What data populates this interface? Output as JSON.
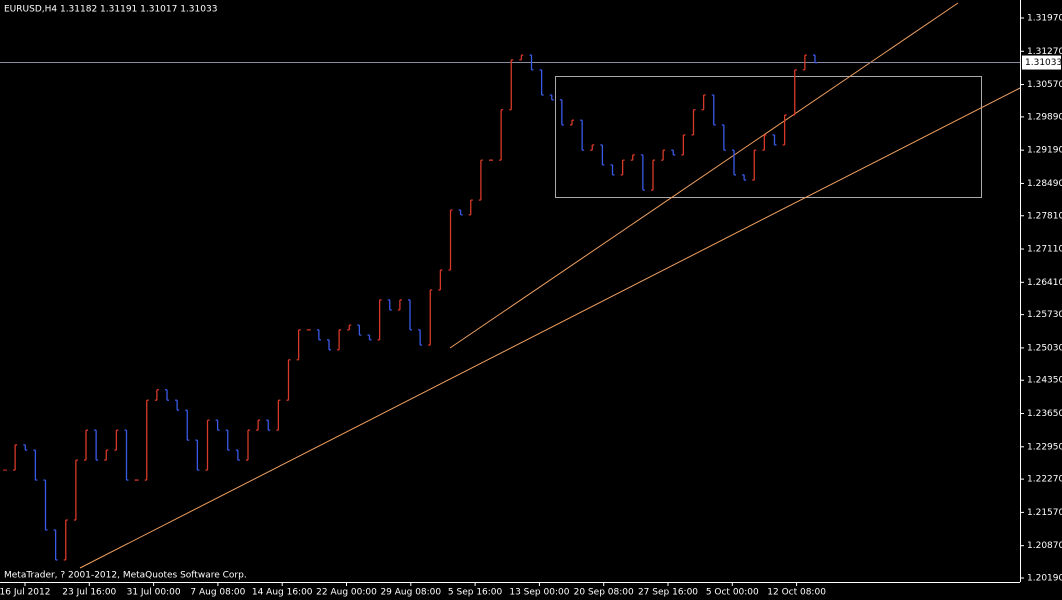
{
  "chart_data": {
    "type": "bars",
    "title": "EURUSD,H4  1.31182 1.31191 1.31017 1.31033",
    "footer": "MetaTrader, ? 2001-2012, MetaQuotes Software Corp.",
    "current_price": {
      "value": 1.31033,
      "label": "1.31033"
    },
    "up_color": "#d83a2a",
    "down_color": "#3a5ae8",
    "x_labels": [
      "16 Jul 2012",
      "23 Jul 16:00",
      "31 Jul 00:00",
      "7 Aug 08:00",
      "14 Aug 16:00",
      "22 Aug 00:00",
      "29 Aug 08:00",
      "5 Sep 16:00",
      "13 Sep 00:00",
      "20 Sep 08:00",
      "27 Sep 16:00",
      "5 Oct 00:00",
      "12 Oct 08:00"
    ],
    "values": [
      1.2246,
      1.2299,
      1.2288,
      1.2225,
      1.212,
      1.2057,
      1.2141,
      1.2267,
      1.233,
      1.2267,
      1.2288,
      1.233,
      1.2225,
      1.2225,
      1.2393,
      1.2415,
      1.2393,
      1.2372,
      1.2309,
      1.2246,
      1.2351,
      1.233,
      1.2288,
      1.2267,
      1.233,
      1.2351,
      1.233,
      1.2393,
      1.2478,
      1.2541,
      1.2541,
      1.252,
      1.2499,
      1.2541,
      1.2551,
      1.253,
      1.252,
      1.2604,
      1.2583,
      1.2604,
      1.2541,
      1.2509,
      1.2625,
      1.2667,
      1.2793,
      1.2783,
      1.2814,
      1.2898,
      1.2898,
      1.3004,
      1.3109,
      1.3119,
      1.3088,
      1.3035,
      1.3025,
      1.2972,
      1.2982,
      1.2919,
      1.293,
      1.2888,
      1.2867,
      1.2898,
      1.2909,
      1.2835,
      1.2898,
      1.2919,
      1.2909,
      1.2951,
      1.3004,
      1.3035,
      1.2972,
      1.2919,
      1.2867,
      1.2856,
      1.2919,
      1.2951,
      1.293,
      1.2993,
      1.3088,
      1.3119,
      1.3103
    ],
    "ylim": [
      1.2019,
      1.3197
    ],
    "yticks": [
      {
        "value": 1.3197,
        "label": "1.31970"
      },
      {
        "value": 1.3127,
        "label": "1.31270"
      },
      {
        "value": 1.3057,
        "label": "1.30570"
      },
      {
        "value": 1.2989,
        "label": "1.29890"
      },
      {
        "value": 1.2919,
        "label": "1.29190"
      },
      {
        "value": 1.2849,
        "label": "1.28490"
      },
      {
        "value": 1.2781,
        "label": "1.27810"
      },
      {
        "value": 1.2711,
        "label": "1.27110"
      },
      {
        "value": 1.2641,
        "label": "1.26410"
      },
      {
        "value": 1.2573,
        "label": "1.25730"
      },
      {
        "value": 1.2503,
        "label": "1.25030"
      },
      {
        "value": 1.2435,
        "label": "1.24350"
      },
      {
        "value": 1.2365,
        "label": "1.23650"
      },
      {
        "value": 1.2295,
        "label": "1.22950"
      },
      {
        "value": 1.2227,
        "label": "1.22270"
      },
      {
        "value": 1.2157,
        "label": "1.21570"
      },
      {
        "value": 1.2087,
        "label": "1.20870"
      },
      {
        "value": 1.2019,
        "label": "1.20190"
      }
    ]
  }
}
